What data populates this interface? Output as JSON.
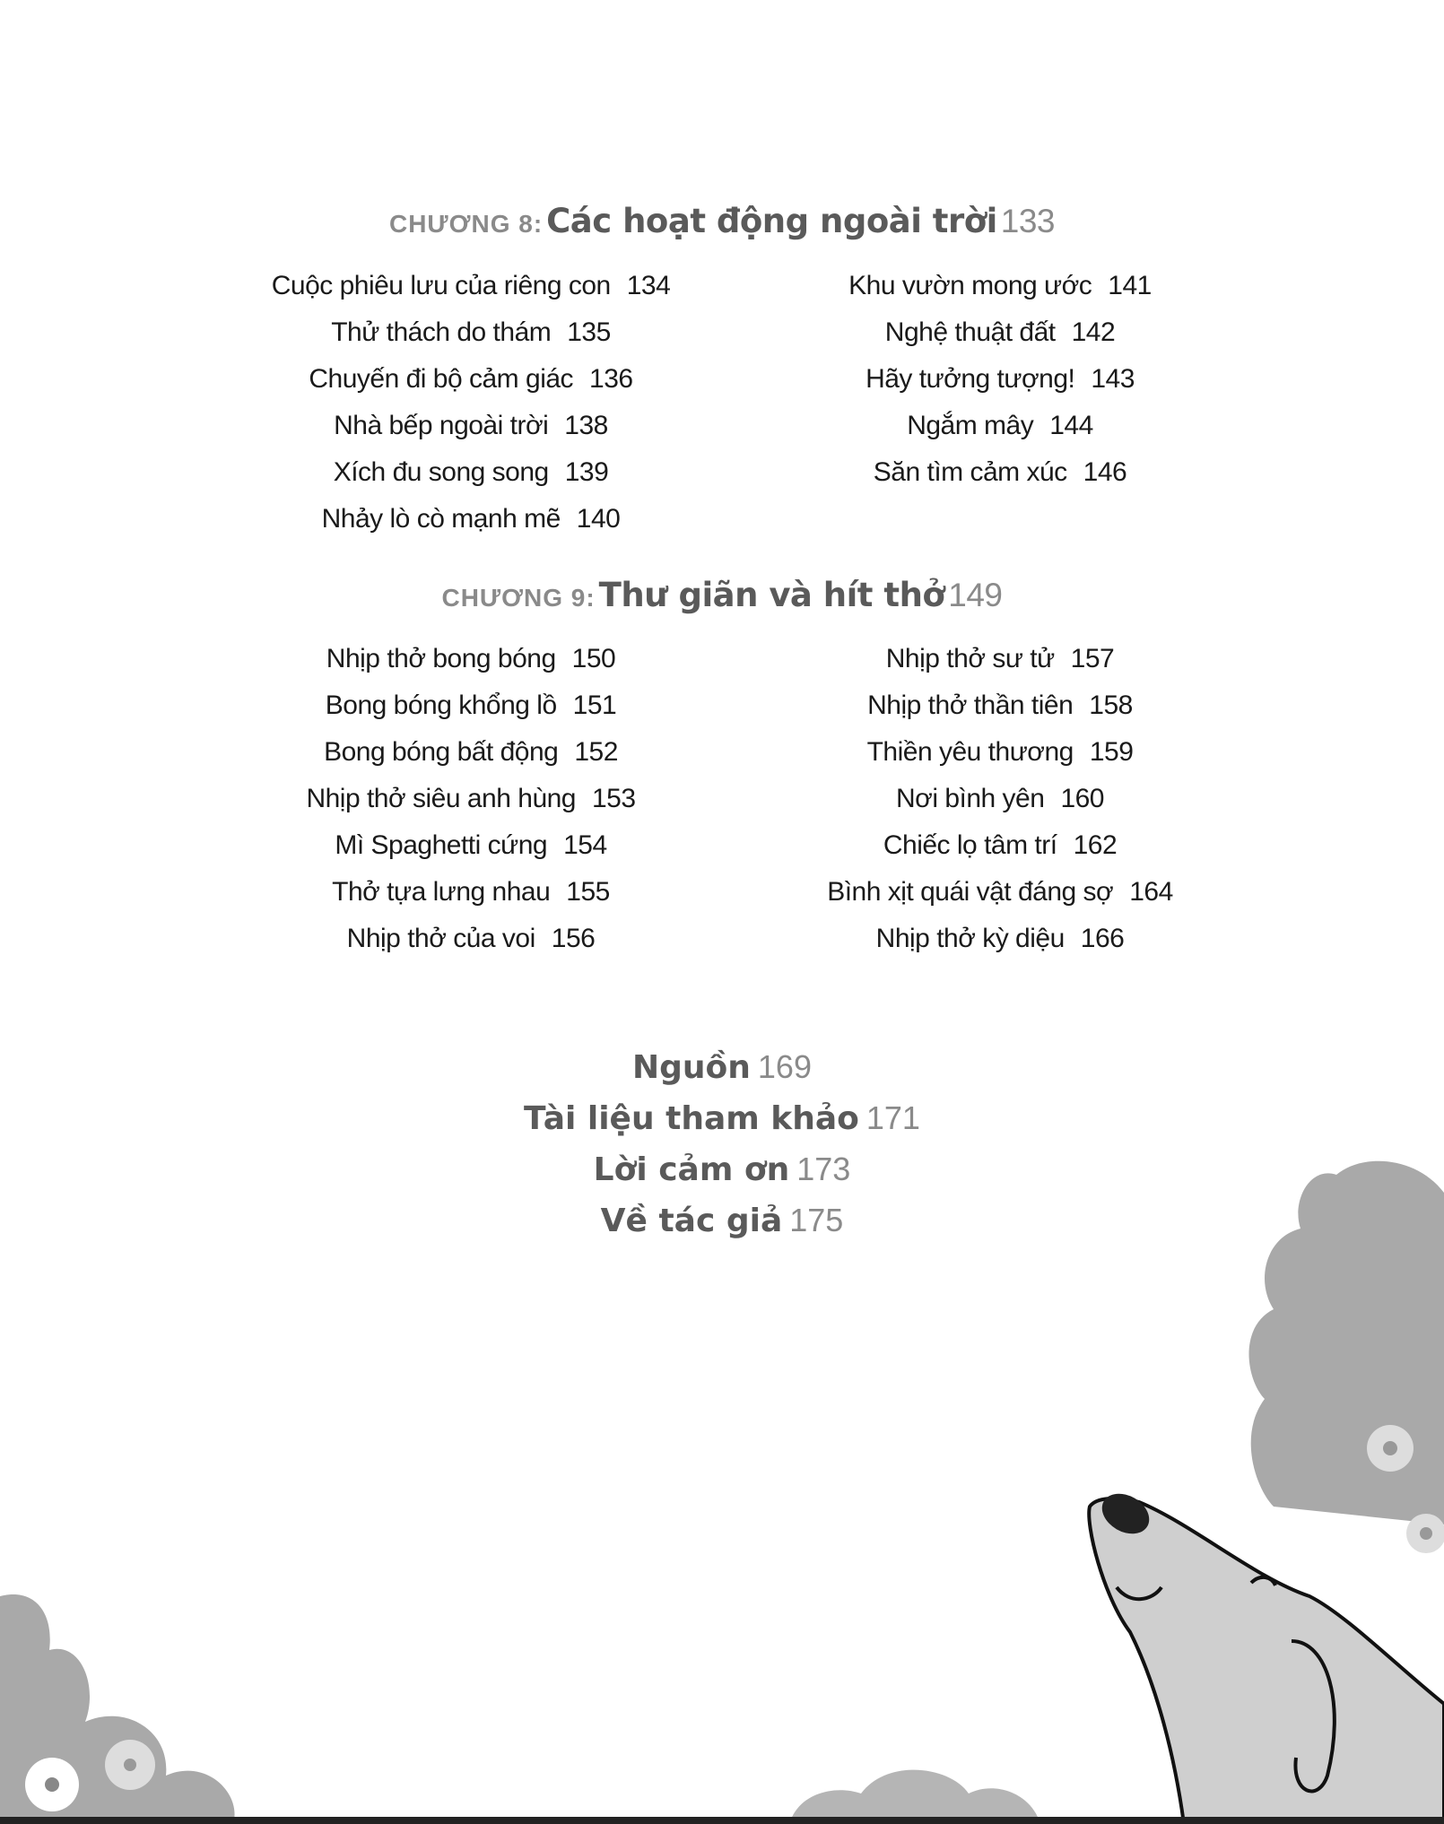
{
  "chapters": [
    {
      "label": "CHƯƠNG 8:",
      "title": "Các hoạt động ngoài trời",
      "page": "133",
      "left": [
        [
          "Cuộc phiêu lưu của riêng con",
          "134"
        ],
        [
          "Thử thách do thám",
          "135"
        ],
        [
          "Chuyến đi bộ cảm giác",
          "136"
        ],
        [
          "Nhà bếp ngoài trời",
          "138"
        ],
        [
          "Xích đu song song",
          "139"
        ],
        [
          "Nhảy lò cò mạnh mẽ",
          "140"
        ]
      ],
      "right": [
        [
          "Khu vườn mong ước",
          "141"
        ],
        [
          "Nghệ thuật đất",
          "142"
        ],
        [
          "Hãy tưởng tượng!",
          "143"
        ],
        [
          "Ngắm mây",
          "144"
        ],
        [
          "Săn tìm cảm xúc",
          "146"
        ]
      ]
    },
    {
      "label": "CHƯƠNG 9:",
      "title": "Thư giãn và hít thở",
      "page": "149",
      "left": [
        [
          "Nhịp thở bong bóng",
          "150"
        ],
        [
          "Bong bóng khổng lồ",
          "151"
        ],
        [
          "Bong bóng bất động",
          "152"
        ],
        [
          "Nhịp thở siêu anh hùng",
          "153"
        ],
        [
          "Mì Spaghetti cứng",
          "154"
        ],
        [
          "Thở tựa lưng nhau",
          "155"
        ],
        [
          "Nhịp thở của voi",
          "156"
        ]
      ],
      "right": [
        [
          "Nhịp thở sư tử",
          "157"
        ],
        [
          "Nhịp thở thần tiên",
          "158"
        ],
        [
          "Thiền yêu thương",
          "159"
        ],
        [
          "Nơi bình yên",
          "160"
        ],
        [
          "Chiếc lọ tâm trí",
          "162"
        ],
        [
          "Bình xịt quái vật đáng sợ",
          "164"
        ],
        [
          "Nhịp thở kỳ diệu",
          "166"
        ]
      ]
    }
  ],
  "back_matter": [
    [
      "Nguồn",
      "169"
    ],
    [
      "Tài liệu tham khảo",
      "171"
    ],
    [
      "Lời cảm ơn",
      "173"
    ],
    [
      "Về tác giả",
      "175"
    ]
  ],
  "illustration": {
    "subject": "dog-with-bushes",
    "colors": {
      "bush": "#a9a9a9",
      "dog": "#cfcfcf",
      "outline": "#111111"
    }
  }
}
